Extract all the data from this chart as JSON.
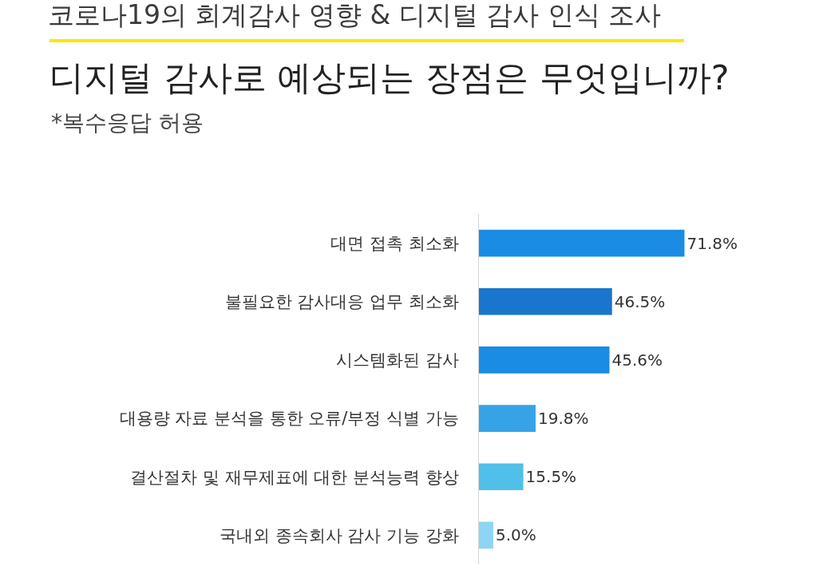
{
  "chart_data": {
    "type": "bar",
    "orientation": "horizontal",
    "title": "코로나19의 회계감사 영향 & 디지털 감사 인식 조사",
    "subtitle": "디지털 감사로 예상되는 장점은 무엇입니까?",
    "annotations": [
      "*복수응답 허용"
    ],
    "categories": [
      "대면 접촉 최소화",
      "불필요한 감사대응 업무 최소화",
      "시스템화된 감사",
      "대용량 자료 분석을 통한 오류/부정 식별 가능",
      "결산절차 및 재무제표에 대한 분석능력 향상",
      "국내외 종속회사 감사 기능 강화"
    ],
    "values": [
      71.8,
      46.5,
      45.6,
      19.8,
      15.5,
      5.0
    ],
    "colors": [
      "#1a8ce3",
      "#1976cc",
      "#1a8ce3",
      "#36a3e6",
      "#50bfea",
      "#8cd5f3"
    ],
    "value_labels": [
      "71.8%",
      "46.5%",
      "45.6%",
      "19.8%",
      "15.5%",
      "5.0%"
    ],
    "tick_labels": "y"
  }
}
